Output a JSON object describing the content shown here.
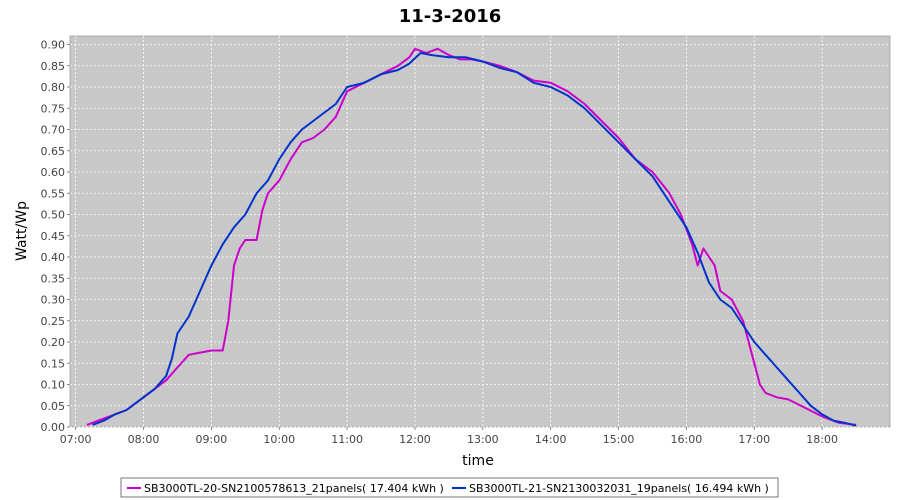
{
  "chart_data": {
    "type": "line",
    "title": "11-3-2016",
    "xlabel": "time",
    "ylabel": "Watt/Wp",
    "x_ticks": [
      "07:00",
      "08:00",
      "09:00",
      "10:00",
      "11:00",
      "12:00",
      "13:00",
      "14:00",
      "15:00",
      "16:00",
      "17:00",
      "18:00"
    ],
    "xlim": [
      "06:55",
      "19:00"
    ],
    "ylim": [
      0,
      0.92
    ],
    "y_ticks": [
      "0.00",
      "0.05",
      "0.10",
      "0.15",
      "0.20",
      "0.25",
      "0.30",
      "0.35",
      "0.40",
      "0.45",
      "0.50",
      "0.55",
      "0.60",
      "0.65",
      "0.70",
      "0.75",
      "0.80",
      "0.85",
      "0.90"
    ],
    "grid": true,
    "background": "#c8c8c8",
    "legend_position": "bottom",
    "series": [
      {
        "name": "SB3000TL-20-SN2100578613_21panels( 17.404 kWh )",
        "color": "#cc00cc",
        "x": [
          "07:10",
          "07:20",
          "07:30",
          "07:45",
          "08:00",
          "08:10",
          "08:20",
          "08:30",
          "08:40",
          "08:50",
          "09:00",
          "09:10",
          "09:15",
          "09:20",
          "09:25",
          "09:30",
          "09:40",
          "09:45",
          "09:50",
          "10:00",
          "10:10",
          "10:20",
          "10:30",
          "10:40",
          "10:50",
          "11:00",
          "11:15",
          "11:30",
          "11:45",
          "11:55",
          "12:00",
          "12:10",
          "12:20",
          "12:30",
          "12:40",
          "12:50",
          "13:00",
          "13:15",
          "13:30",
          "13:45",
          "14:00",
          "14:15",
          "14:30",
          "14:45",
          "15:00",
          "15:15",
          "15:30",
          "15:45",
          "15:55",
          "16:05",
          "16:10",
          "16:15",
          "16:25",
          "16:30",
          "16:40",
          "16:50",
          "17:00",
          "17:05",
          "17:10",
          "17:20",
          "17:30",
          "17:45",
          "18:00",
          "18:15",
          "18:30"
        ],
        "y": [
          0.005,
          0.015,
          0.025,
          0.04,
          0.07,
          0.09,
          0.11,
          0.14,
          0.17,
          0.175,
          0.18,
          0.18,
          0.25,
          0.38,
          0.42,
          0.44,
          0.44,
          0.51,
          0.55,
          0.58,
          0.63,
          0.67,
          0.68,
          0.7,
          0.73,
          0.79,
          0.81,
          0.83,
          0.85,
          0.87,
          0.89,
          0.88,
          0.89,
          0.875,
          0.865,
          0.865,
          0.86,
          0.85,
          0.835,
          0.815,
          0.81,
          0.79,
          0.76,
          0.72,
          0.68,
          0.63,
          0.6,
          0.55,
          0.5,
          0.43,
          0.38,
          0.42,
          0.38,
          0.32,
          0.3,
          0.25,
          0.15,
          0.1,
          0.08,
          0.07,
          0.065,
          0.045,
          0.025,
          0.01,
          0.005
        ]
      },
      {
        "name": "SB3000TL-21-SN2130032031_19panels( 16.494 kWh )",
        "color": "#0033cc",
        "x": [
          "07:15",
          "07:25",
          "07:35",
          "07:45",
          "08:00",
          "08:10",
          "08:20",
          "08:25",
          "08:30",
          "08:40",
          "08:50",
          "09:00",
          "09:10",
          "09:20",
          "09:30",
          "09:40",
          "09:50",
          "10:00",
          "10:10",
          "10:20",
          "10:30",
          "10:40",
          "10:50",
          "11:00",
          "11:15",
          "11:30",
          "11:45",
          "11:55",
          "12:05",
          "12:15",
          "12:30",
          "12:45",
          "13:00",
          "13:15",
          "13:30",
          "13:45",
          "14:00",
          "14:15",
          "14:30",
          "14:45",
          "15:00",
          "15:15",
          "15:30",
          "15:45",
          "16:00",
          "16:10",
          "16:20",
          "16:30",
          "16:40",
          "16:50",
          "17:00",
          "17:10",
          "17:20",
          "17:30",
          "17:40",
          "17:50",
          "18:00",
          "18:10",
          "18:20",
          "18:30"
        ],
        "y": [
          0.005,
          0.015,
          0.03,
          0.04,
          0.07,
          0.09,
          0.12,
          0.16,
          0.22,
          0.26,
          0.32,
          0.38,
          0.43,
          0.47,
          0.5,
          0.55,
          0.58,
          0.63,
          0.67,
          0.7,
          0.72,
          0.74,
          0.76,
          0.8,
          0.81,
          0.83,
          0.84,
          0.855,
          0.88,
          0.875,
          0.87,
          0.87,
          0.86,
          0.845,
          0.835,
          0.81,
          0.8,
          0.78,
          0.75,
          0.71,
          0.67,
          0.63,
          0.59,
          0.53,
          0.47,
          0.41,
          0.34,
          0.3,
          0.28,
          0.24,
          0.2,
          0.17,
          0.14,
          0.11,
          0.08,
          0.05,
          0.03,
          0.015,
          0.01,
          0.003
        ]
      }
    ]
  }
}
